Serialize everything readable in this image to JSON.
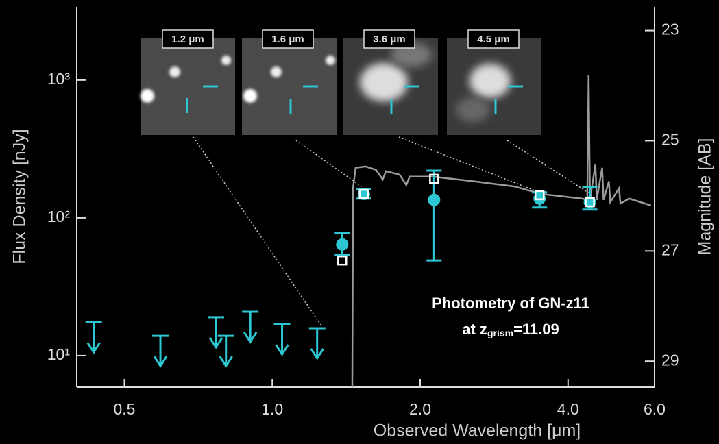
{
  "chart_data": {
    "type": "scatter",
    "xlabel": "Observed Wavelength [μm]",
    "ylabel": "Flux Density [nJy]",
    "y2label": "Magnitude [AB]",
    "xscale": "log",
    "yscale": "log",
    "xlim": [
      0.4,
      6.0
    ],
    "ylim": [
      5.9,
      3400
    ],
    "y2lim": [
      29.47,
      22.57
    ],
    "xticks": [
      0.5,
      {
        "value": 1,
        "label": "1.0"
      },
      {
        "value": 2,
        "label": "2.0"
      },
      {
        "value": 4,
        "label": "4.0"
      },
      {
        "value": 6,
        "label": "6.0"
      }
    ],
    "yticks": [
      {
        "value": 10,
        "label": "10¹"
      },
      {
        "value": 100,
        "label": "10²"
      },
      {
        "value": 1000,
        "label": "10³"
      }
    ],
    "y2ticks": [
      23,
      25,
      27,
      29
    ],
    "insets": [
      "1.2 μm",
      "1.6 μm",
      "3.6 μm",
      "4.5 μm"
    ],
    "annotation": {
      "line1": "Photometry of GN-z11",
      "line2": [
        "at z",
        "grism",
        "=11.09"
      ]
    },
    "series": [
      {
        "kind": "line",
        "color": "#9b9b9b",
        "x": [
          1.455,
          1.46,
          1.478,
          1.55,
          1.626,
          1.678,
          1.704,
          1.816,
          1.874,
          1.904,
          2.127,
          2.572,
          3.11,
          3.53,
          4.268,
          4.377,
          4.405,
          4.433,
          4.547,
          4.576,
          4.693,
          4.724,
          4.844,
          4.875,
          5.08,
          5.112,
          5.327,
          5.9
        ],
        "values": [
          5.9,
          164,
          231,
          236,
          223,
          190,
          218,
          206,
          173,
          199,
          199,
          184,
          169,
          149,
          138,
          135,
          1084,
          135,
          244,
          135,
          231,
          135,
          184,
          130,
          164,
          127,
          138,
          123
        ]
      },
      {
        "kind": "upper-limit",
        "color": "#2ec6d2",
        "x": [
          0.433,
          0.592,
          0.768,
          0.805,
          0.902,
          1.047,
          1.234
        ],
        "values": [
          17.5,
          13.9,
          19.0,
          13.9,
          20.8,
          16.9,
          15.8
        ]
      },
      {
        "kind": "errorbar",
        "color": "#2ec6d2",
        "x": [
          1.388,
          1.536,
          2.135,
          3.5,
          4.43
        ],
        "values": [
          64,
          149,
          135,
          138,
          130
        ],
        "err_low": [
          10,
          11,
          86,
          19,
          15
        ],
        "err_high": [
          14,
          13,
          85,
          15,
          38
        ]
      },
      {
        "kind": "square",
        "color": "#ffffff",
        "x": [
          1.388,
          1.536,
          2.135,
          3.5,
          4.43
        ],
        "values": [
          49,
          149,
          192,
          146,
          130
        ]
      }
    ]
  }
}
